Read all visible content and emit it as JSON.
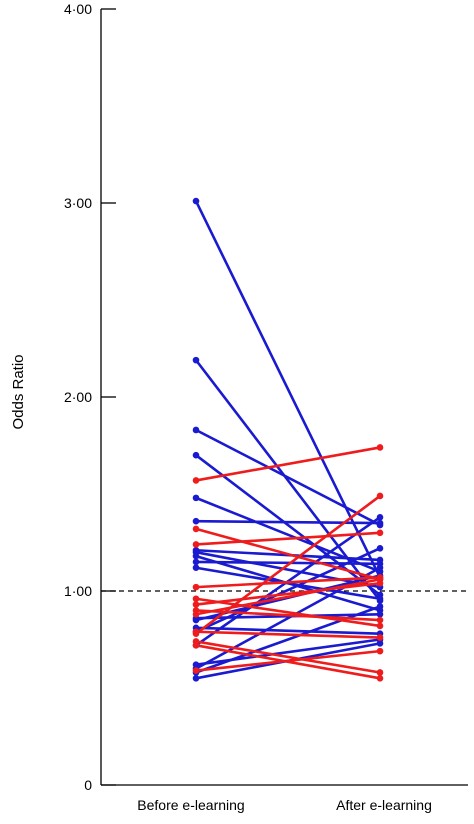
{
  "chart_data": {
    "type": "line",
    "categories": [
      "Before e-learning",
      "After e-learning"
    ],
    "ylabel": "Odds Ratio",
    "ylim": [
      0,
      4
    ],
    "yticks": [
      {
        "value": 0,
        "label": "0"
      },
      {
        "value": 1,
        "label": "1·00"
      },
      {
        "value": 2,
        "label": "2·00"
      },
      {
        "value": 3,
        "label": "3·00"
      },
      {
        "value": 4,
        "label": "4·00"
      }
    ],
    "reference_line": {
      "y": 1.0,
      "style": "dashed"
    },
    "colors": {
      "red": "#ee1c1c",
      "blue": "#1a1ad0",
      "axis": "#000000"
    },
    "pairs": [
      {
        "color": "blue",
        "before": 3.01,
        "after": 1.07
      },
      {
        "color": "blue",
        "before": 2.19,
        "after": 0.95
      },
      {
        "color": "blue",
        "before": 1.83,
        "after": 1.34
      },
      {
        "color": "blue",
        "before": 1.7,
        "after": 0.98
      },
      {
        "color": "blue",
        "before": 1.48,
        "after": 1.1
      },
      {
        "color": "blue",
        "before": 1.36,
        "after": 1.35
      },
      {
        "color": "blue",
        "before": 1.21,
        "after": 1.16
      },
      {
        "color": "blue",
        "before": 1.2,
        "after": 1.02
      },
      {
        "color": "blue",
        "before": 1.18,
        "after": 0.9
      },
      {
        "color": "blue",
        "before": 1.15,
        "after": 1.14
      },
      {
        "color": "blue",
        "before": 1.12,
        "after": 0.96
      },
      {
        "color": "blue",
        "before": 0.86,
        "after": 0.88
      },
      {
        "color": "blue",
        "before": 0.85,
        "after": 1.08
      },
      {
        "color": "blue",
        "before": 0.81,
        "after": 0.78
      },
      {
        "color": "blue",
        "before": 0.79,
        "after": 1.22
      },
      {
        "color": "blue",
        "before": 0.72,
        "after": 1.38
      },
      {
        "color": "blue",
        "before": 0.62,
        "after": 0.75
      },
      {
        "color": "blue",
        "before": 0.6,
        "after": 1.12
      },
      {
        "color": "blue",
        "before": 0.58,
        "after": 0.92
      },
      {
        "color": "blue",
        "before": 0.55,
        "after": 0.73
      },
      {
        "color": "red",
        "before": 1.57,
        "after": 1.74
      },
      {
        "color": "red",
        "before": 1.32,
        "after": 1.06
      },
      {
        "color": "red",
        "before": 1.24,
        "after": 1.3
      },
      {
        "color": "red",
        "before": 1.02,
        "after": 1.07
      },
      {
        "color": "red",
        "before": 0.96,
        "after": 0.82
      },
      {
        "color": "red",
        "before": 0.93,
        "after": 1.04
      },
      {
        "color": "red",
        "before": 0.9,
        "after": 0.85
      },
      {
        "color": "red",
        "before": 0.88,
        "after": 1.06
      },
      {
        "color": "red",
        "before": 0.79,
        "after": 0.76
      },
      {
        "color": "red",
        "before": 0.78,
        "after": 1.49
      },
      {
        "color": "red",
        "before": 0.74,
        "after": 0.58
      },
      {
        "color": "red",
        "before": 0.72,
        "after": 0.55
      },
      {
        "color": "red",
        "before": 0.59,
        "after": 0.69
      }
    ]
  }
}
